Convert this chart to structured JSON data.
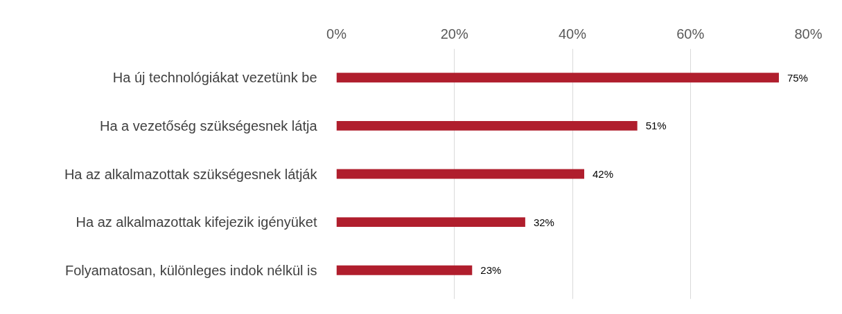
{
  "chart_data": {
    "type": "bar",
    "orientation": "horizontal",
    "categories": [
      "Ha új technológiákat vezetünk be",
      "Ha a vezetőség szükségesnek látja",
      "Ha az alkalmazottak szükségesnek látják",
      "Ha az alkalmazottak kifejezik igényüket",
      "Folyamatosan, különleges indok nélkül is"
    ],
    "values": [
      75,
      51,
      42,
      32,
      23
    ],
    "value_labels": [
      "75%",
      "51%",
      "42%",
      "32%",
      "23%"
    ],
    "color": "#b01e2d",
    "xlim": [
      0,
      80
    ],
    "xticks": [
      {
        "value": 0,
        "label": "0%"
      },
      {
        "value": 20,
        "label": "20%"
      },
      {
        "value": 40,
        "label": "40%"
      },
      {
        "value": 60,
        "label": "60%"
      },
      {
        "value": 80,
        "label": "80%"
      }
    ],
    "grid": "x"
  }
}
